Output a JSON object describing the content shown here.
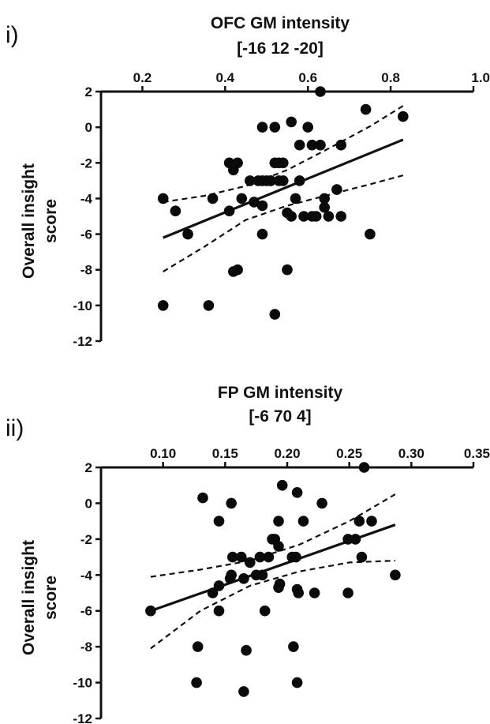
{
  "chart_data": [
    {
      "type": "scatter",
      "panel_label": "i)",
      "title_lines": [
        "OFC GM intensity",
        "[-16 12 -20]"
      ],
      "ylabel_lines": [
        "Overall insight",
        "score"
      ],
      "xaxis_position": "top",
      "xlim": [
        0.1,
        1.0
      ],
      "ylim": [
        -12,
        2
      ],
      "xticks": [
        "0.2",
        "0.4",
        "0.6",
        "0.8",
        "1.0"
      ],
      "yticks": [
        "2",
        "0",
        "-2",
        "-4",
        "-6",
        "-8",
        "-10",
        "-12"
      ],
      "grid": false,
      "x": [
        0.63,
        0.74,
        0.83,
        0.49,
        0.52,
        0.56,
        0.6,
        0.58,
        0.61,
        0.41,
        0.42,
        0.43,
        0.42,
        0.52,
        0.53,
        0.54,
        0.63,
        0.68,
        0.46,
        0.48,
        0.49,
        0.5,
        0.51,
        0.51,
        0.53,
        0.54,
        0.58,
        0.25,
        0.37,
        0.44,
        0.47,
        0.49,
        0.57,
        0.64,
        0.67,
        0.28,
        0.41,
        0.55,
        0.56,
        0.59,
        0.61,
        0.62,
        0.64,
        0.65,
        0.68,
        0.31,
        0.49,
        0.75,
        0.43,
        0.42,
        0.55,
        0.25,
        0.36,
        0.52
      ],
      "y": [
        2.0,
        1.0,
        0.6,
        0.0,
        0.0,
        0.3,
        0.0,
        -1.0,
        -1.0,
        -2.0,
        -2.2,
        -2.0,
        -2.4,
        -2.0,
        -2.0,
        -2.0,
        -1.0,
        -1.0,
        -3.0,
        -3.0,
        -3.0,
        -3.0,
        -3.0,
        -3.0,
        -3.0,
        -3.0,
        -3.0,
        -4.0,
        -4.0,
        -4.0,
        -4.2,
        -4.4,
        -4.0,
        -4.0,
        -3.5,
        -4.7,
        -4.7,
        -4.8,
        -5.0,
        -5.0,
        -5.0,
        -5.0,
        -4.5,
        -5.0,
        -5.0,
        -6.0,
        -6.0,
        -6.0,
        -8.0,
        -8.1,
        -8.0,
        -10.0,
        -10.0,
        -10.5
      ],
      "fit_line": {
        "x": [
          0.25,
          0.83
        ],
        "y": [
          -6.2,
          -0.7
        ]
      },
      "ci_upper": {
        "x": [
          0.25,
          0.35,
          0.45,
          0.55,
          0.65,
          0.75,
          0.83
        ],
        "y": [
          -4.2,
          -3.85,
          -3.3,
          -2.4,
          -1.2,
          0.05,
          1.2
        ]
      },
      "ci_lower": {
        "x": [
          0.25,
          0.35,
          0.45,
          0.55,
          0.65,
          0.75,
          0.83
        ],
        "y": [
          -8.1,
          -6.7,
          -5.2,
          -4.4,
          -3.8,
          -3.2,
          -2.7
        ]
      }
    },
    {
      "type": "scatter",
      "panel_label": "ii)",
      "title_lines": [
        "FP GM intensity",
        "[-6 70 4]"
      ],
      "ylabel_lines": [
        "Overall insight",
        "score"
      ],
      "xaxis_position": "top",
      "xlim": [
        0.05,
        0.35
      ],
      "ylim": [
        -12,
        2
      ],
      "xticks": [
        "0.10",
        "0.15",
        "0.20",
        "0.25",
        "0.30",
        "0.35"
      ],
      "yticks": [
        "2",
        "0",
        "-2",
        "-4",
        "-6",
        "-8",
        "-10",
        "-12"
      ],
      "grid": false,
      "x": [
        0.262,
        0.196,
        0.132,
        0.155,
        0.208,
        0.228,
        0.145,
        0.193,
        0.213,
        0.258,
        0.268,
        0.19,
        0.188,
        0.193,
        0.249,
        0.255,
        0.156,
        0.163,
        0.17,
        0.178,
        0.185,
        0.204,
        0.207,
        0.26,
        0.155,
        0.175,
        0.18,
        0.193,
        0.154,
        0.165,
        0.145,
        0.14,
        0.194,
        0.208,
        0.209,
        0.222,
        0.249,
        0.287,
        0.09,
        0.145,
        0.182,
        0.128,
        0.167,
        0.205,
        0.127,
        0.165,
        0.208
      ],
      "y": [
        2.0,
        1.0,
        0.3,
        0.0,
        0.6,
        0.0,
        -1.0,
        -1.0,
        -1.0,
        -1.0,
        -1.0,
        -2.0,
        -2.0,
        -2.4,
        -2.0,
        -2.0,
        -3.0,
        -3.0,
        -3.3,
        -3.0,
        -3.0,
        -3.0,
        -3.0,
        -3.0,
        -4.0,
        -4.0,
        -4.0,
        -4.7,
        -4.2,
        -4.2,
        -4.6,
        -5.0,
        -4.5,
        -4.8,
        -5.0,
        -5.0,
        -5.0,
        -4.0,
        -6.0,
        -6.0,
        -6.0,
        -8.0,
        -8.2,
        -8.0,
        -10.0,
        -10.5,
        -10.0
      ],
      "fit_line": {
        "x": [
          0.09,
          0.287
        ],
        "y": [
          -6.0,
          -1.2
        ]
      },
      "ci_upper": {
        "x": [
          0.09,
          0.13,
          0.17,
          0.21,
          0.25,
          0.287
        ],
        "y": [
          -4.1,
          -3.7,
          -3.2,
          -2.3,
          -1.0,
          0.5
        ]
      },
      "ci_lower": {
        "x": [
          0.09,
          0.13,
          0.17,
          0.21,
          0.25,
          0.287
        ],
        "y": [
          -8.1,
          -6.0,
          -4.6,
          -3.8,
          -3.3,
          -3.2
        ]
      }
    }
  ]
}
